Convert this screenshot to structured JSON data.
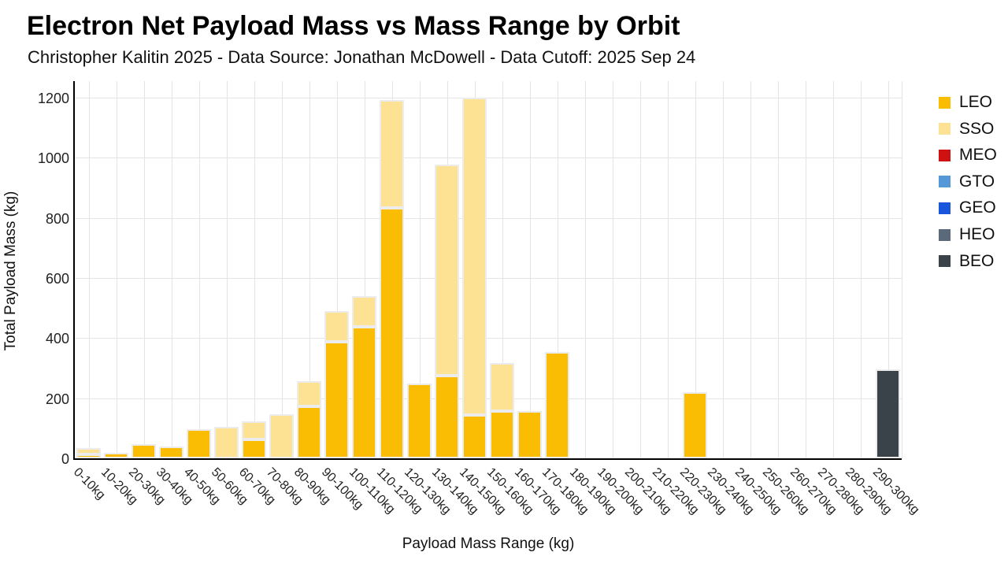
{
  "header": {
    "title": "Electron Net Payload Mass vs Mass Range by Orbit",
    "subtitle": "Christopher Kalitin 2025 - Data Source: Jonathan McDowell - Data Cutoff: 2025 Sep 24"
  },
  "chart_data": {
    "type": "bar",
    "stacked": true,
    "title": "Electron Net Payload Mass vs Mass Range by Orbit",
    "subtitle": "Christopher Kalitin 2025 - Data Source: Jonathan McDowell - Data Cutoff: 2025 Sep 24",
    "xlabel": "Payload Mass Range (kg)",
    "ylabel": "Total Payload Mass (kg)",
    "ylim": [
      0,
      1200
    ],
    "yticks": [
      0,
      200,
      400,
      600,
      800,
      1000,
      1200
    ],
    "grid": true,
    "legend_position": "right",
    "categories": [
      "0-10kg",
      "10-20kg",
      "20-30kg",
      "30-40kg",
      "40-50kg",
      "50-60kg",
      "60-70kg",
      "70-80kg",
      "80-90kg",
      "90-100kg",
      "100-110kg",
      "110-120kg",
      "120-130kg",
      "130-140kg",
      "140-150kg",
      "150-160kg",
      "160-170kg",
      "170-180kg",
      "180-190kg",
      "190-200kg",
      "200-210kg",
      "210-220kg",
      "220-230kg",
      "230-240kg",
      "240-250kg",
      "250-260kg",
      "260-270kg",
      "270-280kg",
      "280-290kg",
      "290-300kg"
    ],
    "series": [
      {
        "name": "LEO",
        "color": "#FBBC04",
        "values": [
          14,
          18,
          47,
          38,
          98,
          0,
          62,
          0,
          172,
          389,
          437,
          832,
          248,
          274,
          145,
          156,
          156,
          355,
          0,
          0,
          0,
          0,
          221,
          0,
          0,
          0,
          0,
          0,
          0,
          0
        ]
      },
      {
        "name": "SSO",
        "color": "#FDE293",
        "values": [
          19,
          0,
          0,
          0,
          0,
          104,
          60,
          148,
          84,
          100,
          104,
          359,
          0,
          702,
          1055,
          160,
          0,
          0,
          0,
          0,
          0,
          0,
          0,
          0,
          0,
          0,
          0,
          0,
          0,
          0
        ]
      },
      {
        "name": "MEO",
        "color": "#CE1212",
        "values": [
          0,
          0,
          0,
          0,
          0,
          0,
          0,
          0,
          0,
          0,
          0,
          0,
          0,
          0,
          0,
          0,
          0,
          0,
          0,
          0,
          0,
          0,
          0,
          0,
          0,
          0,
          0,
          0,
          0,
          0
        ]
      },
      {
        "name": "GTO",
        "color": "#5498D7",
        "values": [
          0,
          0,
          0,
          0,
          0,
          0,
          0,
          0,
          0,
          0,
          0,
          0,
          0,
          0,
          0,
          0,
          0,
          0,
          0,
          0,
          0,
          0,
          0,
          0,
          0,
          0,
          0,
          0,
          0,
          0
        ]
      },
      {
        "name": "GEO",
        "color": "#1A56DB",
        "values": [
          0,
          0,
          0,
          0,
          0,
          0,
          0,
          0,
          0,
          0,
          0,
          0,
          0,
          0,
          0,
          0,
          0,
          0,
          0,
          0,
          0,
          0,
          0,
          0,
          0,
          0,
          0,
          0,
          0,
          0
        ]
      },
      {
        "name": "HEO",
        "color": "#5B6A7A",
        "values": [
          0,
          0,
          0,
          0,
          0,
          0,
          0,
          0,
          0,
          0,
          0,
          0,
          0,
          0,
          0,
          0,
          0,
          0,
          0,
          0,
          0,
          0,
          0,
          0,
          0,
          0,
          0,
          0,
          0,
          0
        ]
      },
      {
        "name": "BEO",
        "color": "#3A424A",
        "values": [
          0,
          0,
          0,
          0,
          0,
          0,
          0,
          0,
          0,
          0,
          0,
          0,
          0,
          0,
          0,
          0,
          0,
          0,
          0,
          0,
          0,
          0,
          0,
          0,
          0,
          0,
          0,
          0,
          0,
          297
        ]
      }
    ]
  }
}
